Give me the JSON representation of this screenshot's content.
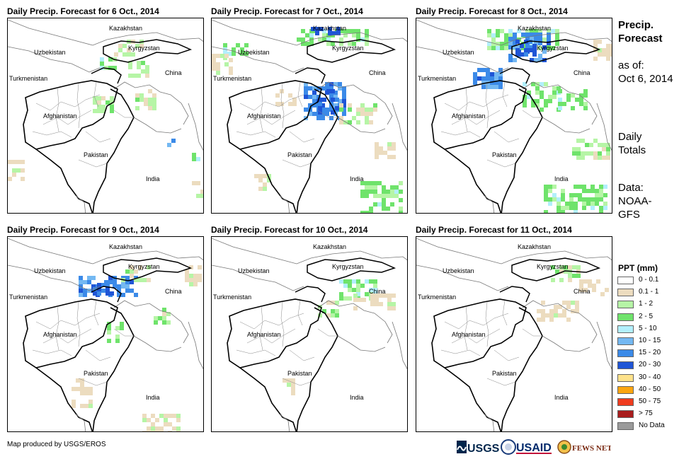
{
  "panels": [
    {
      "title": "Daily Precip. Forecast for 6 Oct., 2014"
    },
    {
      "title": "Daily Precip. Forecast for 7 Oct., 2014"
    },
    {
      "title": "Daily Precip. Forecast for 8 Oct., 2014"
    },
    {
      "title": "Daily Precip. Forecast for 9 Oct., 2014"
    },
    {
      "title": "Daily Precip. Forecast for 10 Oct., 2014"
    },
    {
      "title": "Daily Precip. Forecast for 11 Oct., 2014"
    }
  ],
  "map_labels": {
    "kazakhstan": "Kazakhstan",
    "uzbekistan": "Uzbekistan",
    "kyrgyzstan": "Kyrgyzstan",
    "turkmenistan": "Turkmenistan",
    "china": "China",
    "afghanistan": "Afghanistan",
    "pakistan": "Pakistan",
    "india": "India"
  },
  "side": {
    "title": "Precip. Forecast",
    "asof": "as of:",
    "date": "Oct 6, 2014",
    "daily": "Daily Totals",
    "data": "Data: NOAA-GFS"
  },
  "legend": {
    "title": "PPT (mm)",
    "items": [
      {
        "label": "0 - 0.1",
        "color": "#ffffff"
      },
      {
        "label": "0.1 - 1",
        "color": "#ecdcbf"
      },
      {
        "label": "1 - 2",
        "color": "#b6f5a6"
      },
      {
        "label": "2 - 5",
        "color": "#6fe36b"
      },
      {
        "label": "5 - 10",
        "color": "#b2effc"
      },
      {
        "label": "10 - 15",
        "color": "#74b8f2"
      },
      {
        "label": "15 - 20",
        "color": "#3b8ae8"
      },
      {
        "label": "20 - 30",
        "color": "#1f55d6"
      },
      {
        "label": "30 - 40",
        "color": "#fde28b"
      },
      {
        "label": "40 - 50",
        "color": "#fba50f"
      },
      {
        "label": "50 - 75",
        "color": "#f03c1e"
      },
      {
        "label": "> 75",
        "color": "#a91d1d"
      },
      {
        "label": "No Data",
        "color": "#9a9a9a"
      }
    ]
  },
  "credit": "Map produced by USGS/EROS",
  "logos": {
    "usgs": "USGS",
    "usaid": "USAID",
    "fewsnet": "FEWS NET"
  }
}
